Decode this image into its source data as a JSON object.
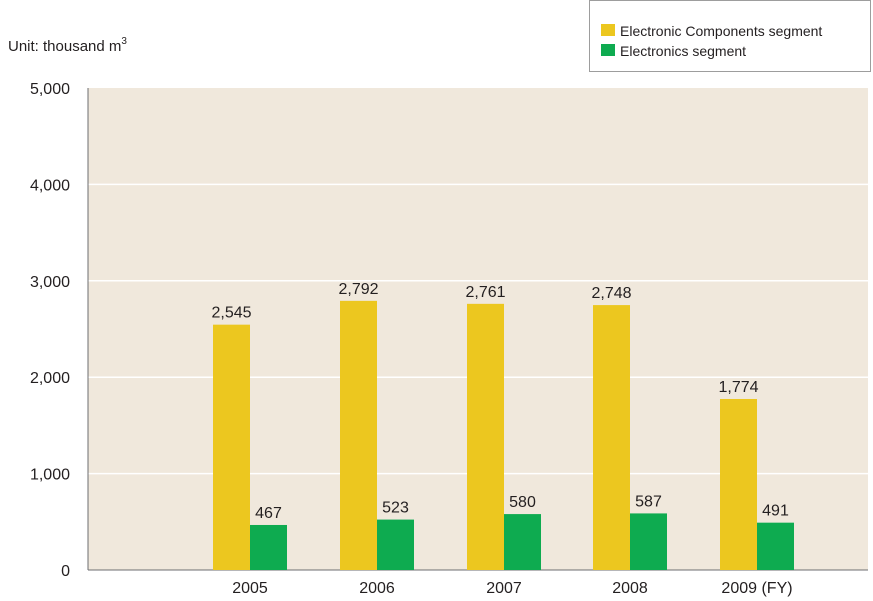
{
  "unit_label": {
    "text": "Unit: thousand m",
    "superscript": "3"
  },
  "colors": {
    "plot_background": "#f0e8dc",
    "gridline": "#ffffff",
    "electronic_components": "#ecc71f",
    "electronics": "#0eab50"
  },
  "chart_data": {
    "type": "bar",
    "categories": [
      "2005",
      "2006",
      "2007",
      "2008",
      "2009 (FY)"
    ],
    "series": [
      {
        "name": "Electronic Components segment",
        "values": [
          2545,
          2792,
          2761,
          2748,
          1774
        ],
        "labels": [
          "2,545",
          "2,792",
          "2,761",
          "2,748",
          "1,774"
        ]
      },
      {
        "name": "Electronics segment",
        "values": [
          467,
          523,
          580,
          587,
          491
        ],
        "labels": [
          "467",
          "523",
          "580",
          "587",
          "491"
        ]
      }
    ],
    "ylim": [
      0,
      5000
    ],
    "yticks": [
      0,
      1000,
      2000,
      3000,
      4000,
      5000
    ],
    "ytick_labels": [
      "0",
      "1,000",
      "2,000",
      "3,000",
      "4,000",
      "5,000"
    ],
    "grid": true,
    "legend_position": "top-right"
  }
}
